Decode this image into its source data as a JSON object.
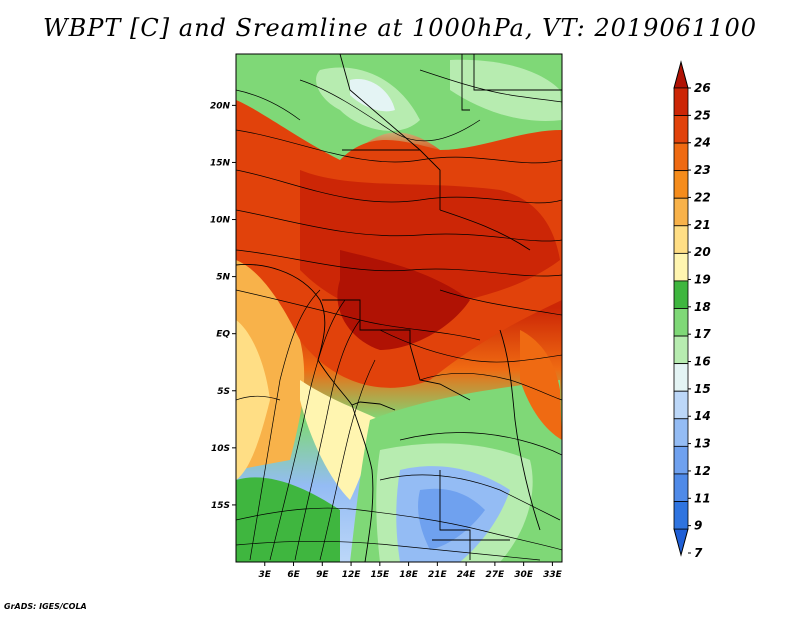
{
  "title": "WBPT [C] and Sreamline at 1000hPa, VT: 2019061100",
  "credit": "GrADS: IGES/COLA",
  "map": {
    "lat_labels": [
      "20N",
      "15N",
      "10N",
      "5N",
      "EQ",
      "5S",
      "10S",
      "15S"
    ],
    "lat_values": [
      20,
      15,
      10,
      5,
      0,
      -5,
      -10,
      -15
    ],
    "lon_labels": [
      "3E",
      "6E",
      "9E",
      "12E",
      "15E",
      "18E",
      "21E",
      "24E",
      "27E",
      "30E",
      "33E"
    ],
    "lon_values": [
      3,
      6,
      9,
      12,
      15,
      18,
      21,
      24,
      27,
      30,
      33
    ],
    "lon_range": [
      0,
      34
    ],
    "lat_range": [
      -20,
      24.5
    ]
  },
  "colorbar": {
    "labels": [
      "7",
      "9",
      "11",
      "12",
      "13",
      "14",
      "15",
      "16",
      "17",
      "18",
      "19",
      "20",
      "21",
      "22",
      "23",
      "24",
      "25",
      "26"
    ],
    "colors": [
      "#1f5fd6",
      "#2f74e0",
      "#4f8ae8",
      "#6fa1ef",
      "#94bcf4",
      "#bcd7f8",
      "#e4f4f4",
      "#b7ecb0",
      "#7fd877",
      "#3fb63f",
      "#fff5b0",
      "#ffde85",
      "#f8b24a",
      "#f58c1c",
      "#ef6a12",
      "#e1420b",
      "#cc2606",
      "#b01204"
    ]
  }
}
